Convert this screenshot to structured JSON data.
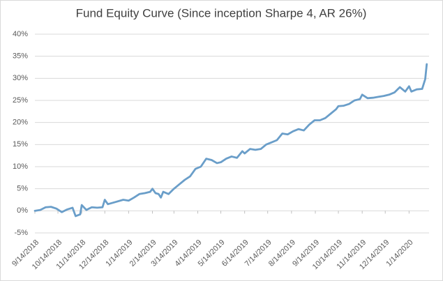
{
  "chart_data": {
    "type": "line",
    "title": "Fund Equity Curve (Since inception Sharpe 4, AR 26%)",
    "x": [
      "2018-09-14",
      "2018-09-21",
      "2018-09-28",
      "2018-10-05",
      "2018-10-12",
      "2018-10-19",
      "2018-10-26",
      "2018-11-02",
      "2018-11-06",
      "2018-11-12",
      "2018-11-14",
      "2018-11-20",
      "2018-11-27",
      "2018-12-04",
      "2018-12-11",
      "2018-12-14",
      "2018-12-18",
      "2018-12-28",
      "2019-01-07",
      "2019-01-14",
      "2019-01-21",
      "2019-01-28",
      "2019-02-04",
      "2019-02-11",
      "2019-02-14",
      "2019-02-18",
      "2019-02-22",
      "2019-02-25",
      "2019-02-28",
      "2019-03-07",
      "2019-03-14",
      "2019-03-21",
      "2019-03-28",
      "2019-04-04",
      "2019-04-11",
      "2019-04-18",
      "2019-04-25",
      "2019-05-02",
      "2019-05-09",
      "2019-05-14",
      "2019-05-21",
      "2019-05-28",
      "2019-06-04",
      "2019-06-11",
      "2019-06-14",
      "2019-06-21",
      "2019-06-28",
      "2019-07-05",
      "2019-07-12",
      "2019-07-19",
      "2019-07-26",
      "2019-08-02",
      "2019-08-09",
      "2019-08-16",
      "2019-08-23",
      "2019-08-30",
      "2019-09-06",
      "2019-09-13",
      "2019-09-20",
      "2019-09-27",
      "2019-10-04",
      "2019-10-11",
      "2019-10-14",
      "2019-10-21",
      "2019-10-28",
      "2019-11-04",
      "2019-11-11",
      "2019-11-14",
      "2019-11-21",
      "2019-11-28",
      "2019-12-05",
      "2019-12-12",
      "2019-12-19",
      "2019-12-26",
      "2020-01-02",
      "2020-01-09",
      "2020-01-14",
      "2020-01-17",
      "2020-01-24",
      "2020-01-31",
      "2020-02-04",
      "2020-02-06"
    ],
    "values": [
      0,
      0.2,
      0.8,
      0.9,
      0.5,
      -0.3,
      0.3,
      0.7,
      -1.2,
      -0.8,
      1.3,
      0.2,
      0.8,
      0.7,
      0.8,
      2.5,
      1.5,
      2.0,
      2.5,
      2.3,
      3.0,
      3.8,
      4.0,
      4.3,
      5.0,
      4.0,
      3.8,
      3.0,
      4.3,
      3.8,
      5.0,
      6.0,
      7.0,
      7.8,
      9.5,
      10.0,
      11.8,
      11.5,
      10.8,
      11.0,
      11.8,
      12.3,
      12.0,
      13.5,
      13.0,
      14.0,
      13.8,
      14.0,
      15.0,
      15.5,
      16.0,
      17.5,
      17.3,
      18.0,
      18.5,
      18.2,
      19.5,
      20.5,
      20.5,
      21.0,
      22.0,
      23.0,
      23.7,
      23.8,
      24.2,
      25.0,
      25.3,
      26.3,
      25.5,
      25.6,
      25.8,
      26.0,
      26.3,
      26.8,
      28.0,
      27.0,
      28.2,
      27.0,
      27.5,
      27.6,
      29.8,
      33.2
    ],
    "color": "#6a9ec9",
    "xlim": [
      "2018-09-14",
      "2020-02-09"
    ],
    "xticks": [
      {
        "value": "2018-09-14",
        "label": "9/14/2018"
      },
      {
        "value": "2018-10-14",
        "label": "10/14/2018"
      },
      {
        "value": "2018-11-14",
        "label": "11/14/2018"
      },
      {
        "value": "2018-12-14",
        "label": "12/14/2018"
      },
      {
        "value": "2019-01-14",
        "label": "1/14/2019"
      },
      {
        "value": "2019-02-14",
        "label": "2/14/2019"
      },
      {
        "value": "2019-03-14",
        "label": "3/14/2019"
      },
      {
        "value": "2019-04-14",
        "label": "4/14/2019"
      },
      {
        "value": "2019-05-14",
        "label": "5/14/2019"
      },
      {
        "value": "2019-06-14",
        "label": "6/14/2019"
      },
      {
        "value": "2019-07-14",
        "label": "7/14/2019"
      },
      {
        "value": "2019-08-14",
        "label": "8/14/2019"
      },
      {
        "value": "2019-09-14",
        "label": "9/14/2019"
      },
      {
        "value": "2019-10-14",
        "label": "10/14/2019"
      },
      {
        "value": "2019-11-14",
        "label": "11/14/2019"
      },
      {
        "value": "2019-12-14",
        "label": "12/14/2019"
      },
      {
        "value": "2020-01-14",
        "label": "1/14/2020"
      }
    ],
    "ylim": [
      -5,
      40
    ],
    "yticks": [
      {
        "value": -5,
        "label": "-5%"
      },
      {
        "value": 0,
        "label": "0%"
      },
      {
        "value": 5,
        "label": "5%"
      },
      {
        "value": 10,
        "label": "10%"
      },
      {
        "value": 15,
        "label": "15%"
      },
      {
        "value": 20,
        "label": "20%"
      },
      {
        "value": 25,
        "label": "25%"
      },
      {
        "value": 30,
        "label": "30%"
      },
      {
        "value": 35,
        "label": "35%"
      },
      {
        "value": 40,
        "label": "40%"
      }
    ],
    "grid": true
  }
}
